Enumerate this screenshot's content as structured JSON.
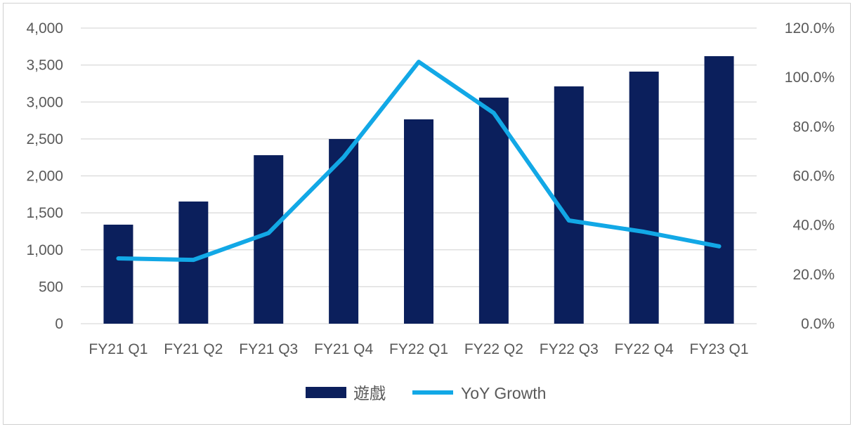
{
  "chart_data": {
    "type": "bar+line",
    "categories": [
      "FY21 Q1",
      "FY21 Q2",
      "FY21 Q3",
      "FY21 Q4",
      "FY22 Q1",
      "FY22 Q2",
      "FY22 Q3",
      "FY22 Q4",
      "FY23 Q1"
    ],
    "series": [
      {
        "name": "遊戲",
        "type": "bar",
        "axis": "left",
        "color": "#0b1f5c",
        "values": [
          1340,
          1653,
          2280,
          2499,
          2765,
          3059,
          3211,
          3411,
          3620
        ]
      },
      {
        "name": "YoY Growth",
        "type": "line",
        "axis": "right",
        "color": "#12a8e6",
        "values": [
          26.5,
          25.9,
          36.8,
          67.6,
          106.3,
          85.5,
          41.9,
          37.3,
          31.4
        ]
      }
    ],
    "left_axis": {
      "min": 0,
      "max": 4000,
      "ticks": [
        "0",
        "500",
        "1,000",
        "1,500",
        "2,000",
        "2,500",
        "3,000",
        "3,500",
        "4,000"
      ]
    },
    "right_axis": {
      "min": 0,
      "max": 120,
      "ticks": [
        "0.0%",
        "20.0%",
        "40.0%",
        "60.0%",
        "80.0%",
        "100.0%",
        "120.0%"
      ]
    },
    "grid": true,
    "legend_position": "bottom"
  }
}
